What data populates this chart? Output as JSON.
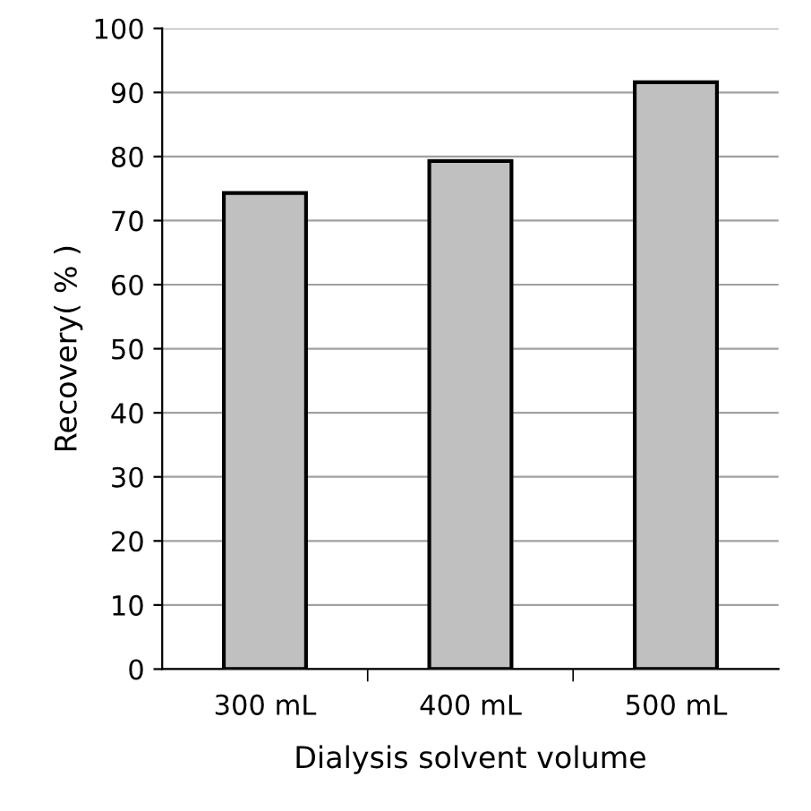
{
  "chart_data": {
    "type": "bar",
    "xlabel": "Dialysis solvent volume",
    "ylabel": "Recovery( % )",
    "categories": [
      "300 mL",
      "400 mL",
      "500 mL"
    ],
    "values": [
      74.3,
      79.3,
      91.6
    ],
    "color": "#c0c0c0",
    "ylim": [
      0,
      100
    ],
    "yticks": [
      0,
      10,
      20,
      30,
      40,
      50,
      60,
      70,
      80,
      90,
      100
    ],
    "grid": "y"
  }
}
